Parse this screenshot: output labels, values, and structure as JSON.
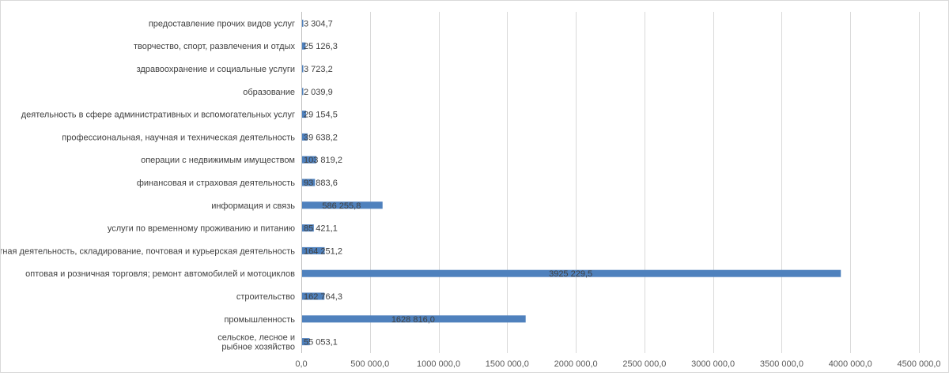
{
  "chart_data": {
    "type": "bar",
    "orientation": "horizontal",
    "title": "",
    "xlabel": "",
    "ylabel": "",
    "xlim": [
      0,
      4500000
    ],
    "tick_values": [
      0,
      500000,
      1000000,
      1500000,
      2000000,
      2500000,
      3000000,
      3500000,
      4000000,
      4500000
    ],
    "tick_labels": [
      "0,0",
      "500 000,0",
      "1000 000,0",
      "1500 000,0",
      "2000 000,0",
      "2500 000,0",
      "3000 000,0",
      "3500 000,0",
      "4000 000,0",
      "4500 000,0"
    ],
    "grid": true,
    "bar_color": "#4f81bd",
    "series": [
      {
        "name": "",
        "categories": [
          "сельское, лесное и рыбное хозяйство",
          "промышленность",
          "строительство",
          "оптовая и розничная торговля; ремонт автомобилей и мотоциклов",
          "транспортная деятельность, складирование, почтовая и курьерская деятельность",
          "услуги по временному проживанию и питанию",
          "информация и связь",
          "финансовая и страховая деятельность",
          "операции с недвижимым имуществом",
          "профессиональная, научная и техническая деятельность",
          "деятельность в сфере административных и вспомогательных услуг",
          "образование",
          "здравоохранение и социальные услуги",
          "творчество, спорт, развлечения и отдых",
          "предоставление прочих видов услуг"
        ],
        "category_lines": [
          [
            "сельское, лесное и",
            "рыбное хозяйство"
          ],
          [
            "промышленность"
          ],
          [
            "строительство"
          ],
          [
            "оптовая и розничная торговля; ремонт автомобилей и мотоциклов"
          ],
          [
            "транспортная деятельность, складирование, почтовая и курьерская деятельность"
          ],
          [
            "услуги по временному проживанию и питанию"
          ],
          [
            "информация и связь"
          ],
          [
            "финансовая и страховая деятельность"
          ],
          [
            "операции с недвижимым имуществом"
          ],
          [
            "профессиональная, научная и техническая деятельность"
          ],
          [
            "деятельность в сфере административных и вспомогательных услуг"
          ],
          [
            "образование"
          ],
          [
            "здравоохранение и социальные услуги"
          ],
          [
            "творчество, спорт, развлечения и отдых"
          ],
          [
            "предоставление прочих видов услуг"
          ]
        ],
        "values": [
          55053.1,
          1628816.0,
          162764.3,
          3925229.5,
          164251.2,
          85421.1,
          586255.8,
          93883.6,
          103819.2,
          39638.2,
          29154.5,
          2039.9,
          3723.2,
          25126.3,
          3304.7
        ],
        "value_labels": [
          "55 053,1",
          "1628 816,0",
          "162 764,3",
          "3925 229,5",
          "164 251,2",
          "85 421,1",
          "586 255,8",
          "93 883,6",
          "103 819,2",
          "39 638,2",
          "29 154,5",
          "2 039,9",
          "3 723,2",
          "25 126,3",
          "3 304,7"
        ],
        "label_position": [
          "outside",
          "inside",
          "outside",
          "inside",
          "outside",
          "outside",
          "inside",
          "outside",
          "outside",
          "outside",
          "outside",
          "outside",
          "outside",
          "outside",
          "outside"
        ]
      }
    ]
  }
}
